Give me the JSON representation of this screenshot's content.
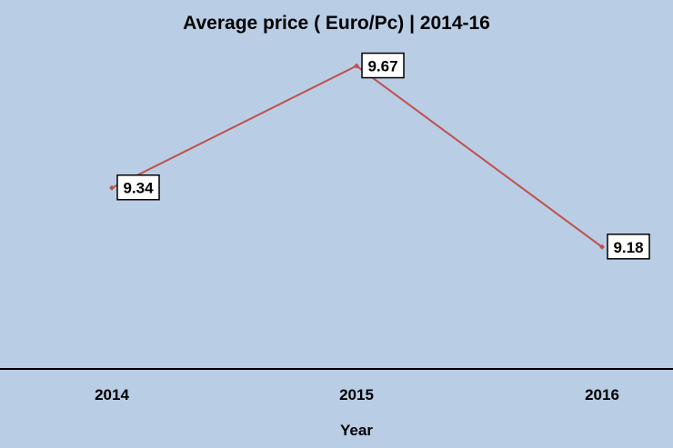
{
  "chart_data": {
    "type": "line",
    "title": "Average price ( Euro/Pc)  | 2014-16",
    "xlabel": "Year",
    "ylabel": "",
    "categories": [
      "2014",
      "2015",
      "2016"
    ],
    "series": [
      {
        "values": [
          9.34,
          9.67,
          9.18
        ],
        "data_labels": [
          "9.34",
          "9.67",
          "9.18"
        ],
        "color": "#c0504d"
      }
    ],
    "ylim": [
      8.85,
      9.75
    ],
    "grid": false,
    "legend": "none",
    "background_color": "#b9cde5",
    "axis_color": "#000000"
  }
}
